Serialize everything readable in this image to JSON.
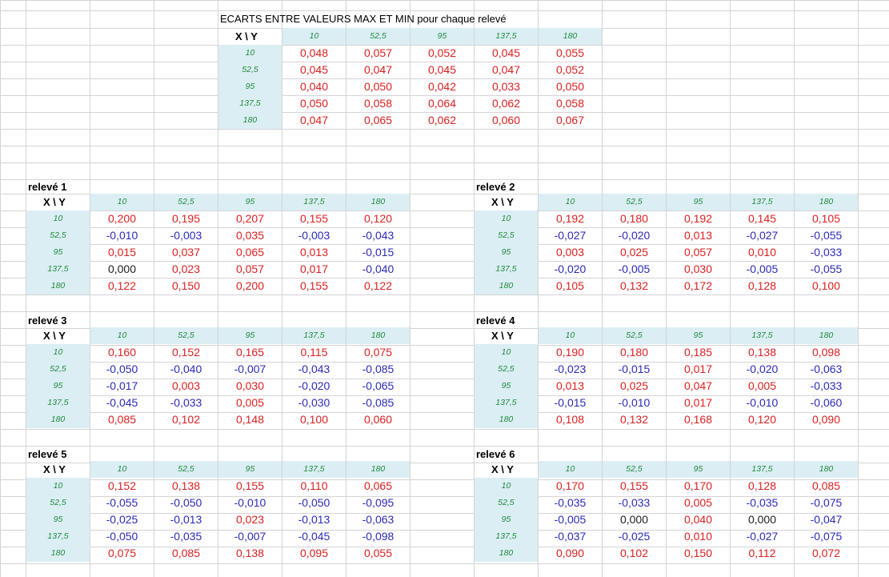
{
  "sheet": {
    "title": "ECARTS ENTRE VALEURS MAX ET MIN pour chaque relevé",
    "colors": {
      "positive": "#dc2020",
      "negative": "#2b2bb8",
      "zero": "#202020",
      "header_fill": "#dbeef4",
      "header_text": "#1f8a3a"
    }
  },
  "summary": {
    "corner": "X \\ Y",
    "col_headers": [
      "10",
      "52,5",
      "95",
      "137,5",
      "180"
    ],
    "row_headers": [
      "10",
      "52,5",
      "95",
      "137,5",
      "180"
    ],
    "rows": [
      [
        "0,048",
        "0,057",
        "0,052",
        "0,045",
        "0,055"
      ],
      [
        "0,045",
        "0,047",
        "0,045",
        "0,047",
        "0,052"
      ],
      [
        "0,040",
        "0,050",
        "0,042",
        "0,033",
        "0,050"
      ],
      [
        "0,050",
        "0,058",
        "0,064",
        "0,062",
        "0,058"
      ],
      [
        "0,047",
        "0,065",
        "0,062",
        "0,060",
        "0,067"
      ]
    ]
  },
  "releves": [
    {
      "title": "relevé 1",
      "corner": "X \\ Y",
      "col_headers": [
        "10",
        "52,5",
        "95",
        "137,5",
        "180"
      ],
      "row_headers": [
        "10",
        "52,5",
        "95",
        "137,5",
        "180"
      ],
      "rows": [
        [
          "0,200",
          "0,195",
          "0,207",
          "0,155",
          "0,120"
        ],
        [
          "-0,010",
          "-0,003",
          "0,035",
          "-0,003",
          "-0,043"
        ],
        [
          "0,015",
          "0,037",
          "0,065",
          "0,013",
          "-0,015"
        ],
        [
          "0,000",
          "0,023",
          "0,057",
          "0,017",
          "-0,040"
        ],
        [
          "0,122",
          "0,150",
          "0,200",
          "0,155",
          "0,122"
        ]
      ]
    },
    {
      "title": "relevé 2",
      "corner": "X \\ Y",
      "col_headers": [
        "10",
        "52,5",
        "95",
        "137,5",
        "180"
      ],
      "row_headers": [
        "10",
        "52,5",
        "95",
        "137,5",
        "180"
      ],
      "rows": [
        [
          "0,192",
          "0,180",
          "0,192",
          "0,145",
          "0,105"
        ],
        [
          "-0,027",
          "-0,020",
          "0,013",
          "-0,027",
          "-0,055"
        ],
        [
          "0,003",
          "0,025",
          "0,057",
          "0,010",
          "-0,033"
        ],
        [
          "-0,020",
          "-0,005",
          "0,030",
          "-0,005",
          "-0,055"
        ],
        [
          "0,105",
          "0,132",
          "0,172",
          "0,128",
          "0,100"
        ]
      ]
    },
    {
      "title": "relevé 3",
      "corner": "X \\ Y",
      "col_headers": [
        "10",
        "52,5",
        "95",
        "137,5",
        "180"
      ],
      "row_headers": [
        "10",
        "52,5",
        "95",
        "137,5",
        "180"
      ],
      "rows": [
        [
          "0,160",
          "0,152",
          "0,165",
          "0,115",
          "0,075"
        ],
        [
          "-0,050",
          "-0,040",
          "-0,007",
          "-0,043",
          "-0,085"
        ],
        [
          "-0,017",
          "0,003",
          "0,030",
          "-0,020",
          "-0,065"
        ],
        [
          "-0,045",
          "-0,033",
          "0,005",
          "-0,030",
          "-0,085"
        ],
        [
          "0,085",
          "0,102",
          "0,148",
          "0,100",
          "0,060"
        ]
      ]
    },
    {
      "title": "relevé 4",
      "corner": "X \\ Y",
      "col_headers": [
        "10",
        "52,5",
        "95",
        "137,5",
        "180"
      ],
      "row_headers": [
        "10",
        "52,5",
        "95",
        "137,5",
        "180"
      ],
      "rows": [
        [
          "0,190",
          "0,180",
          "0,185",
          "0,138",
          "0,098"
        ],
        [
          "-0,023",
          "-0,015",
          "0,017",
          "-0,020",
          "-0,063"
        ],
        [
          "0,013",
          "0,025",
          "0,047",
          "0,005",
          "-0,033"
        ],
        [
          "-0,015",
          "-0,010",
          "0,017",
          "-0,010",
          "-0,060"
        ],
        [
          "0,108",
          "0,132",
          "0,168",
          "0,120",
          "0,090"
        ]
      ]
    },
    {
      "title": "relevé 5",
      "corner": "X \\ Y",
      "col_headers": [
        "10",
        "52,5",
        "95",
        "137,5",
        "180"
      ],
      "row_headers": [
        "10",
        "52,5",
        "95",
        "137,5",
        "180"
      ],
      "rows": [
        [
          "0,152",
          "0,138",
          "0,155",
          "0,110",
          "0,065"
        ],
        [
          "-0,055",
          "-0,050",
          "-0,010",
          "-0,050",
          "-0,095"
        ],
        [
          "-0,025",
          "-0,013",
          "0,023",
          "-0,013",
          "-0,063"
        ],
        [
          "-0,050",
          "-0,035",
          "-0,007",
          "-0,045",
          "-0,098"
        ],
        [
          "0,075",
          "0,085",
          "0,138",
          "0,095",
          "0,055"
        ]
      ]
    },
    {
      "title": "relevé 6",
      "corner": "X \\ Y",
      "col_headers": [
        "10",
        "52,5",
        "95",
        "137,5",
        "180"
      ],
      "row_headers": [
        "10",
        "52,5",
        "95",
        "137,5",
        "180"
      ],
      "rows": [
        [
          "0,170",
          "0,155",
          "0,170",
          "0,128",
          "0,085"
        ],
        [
          "-0,035",
          "-0,033",
          "0,005",
          "-0,035",
          "-0,075"
        ],
        [
          "-0,005",
          "0,000",
          "0,040",
          "0,000",
          "-0,047"
        ],
        [
          "-0,037",
          "-0,025",
          "0,010",
          "-0,027",
          "-0,075"
        ],
        [
          "0,090",
          "0,102",
          "0,150",
          "0,112",
          "0,072"
        ]
      ]
    }
  ]
}
